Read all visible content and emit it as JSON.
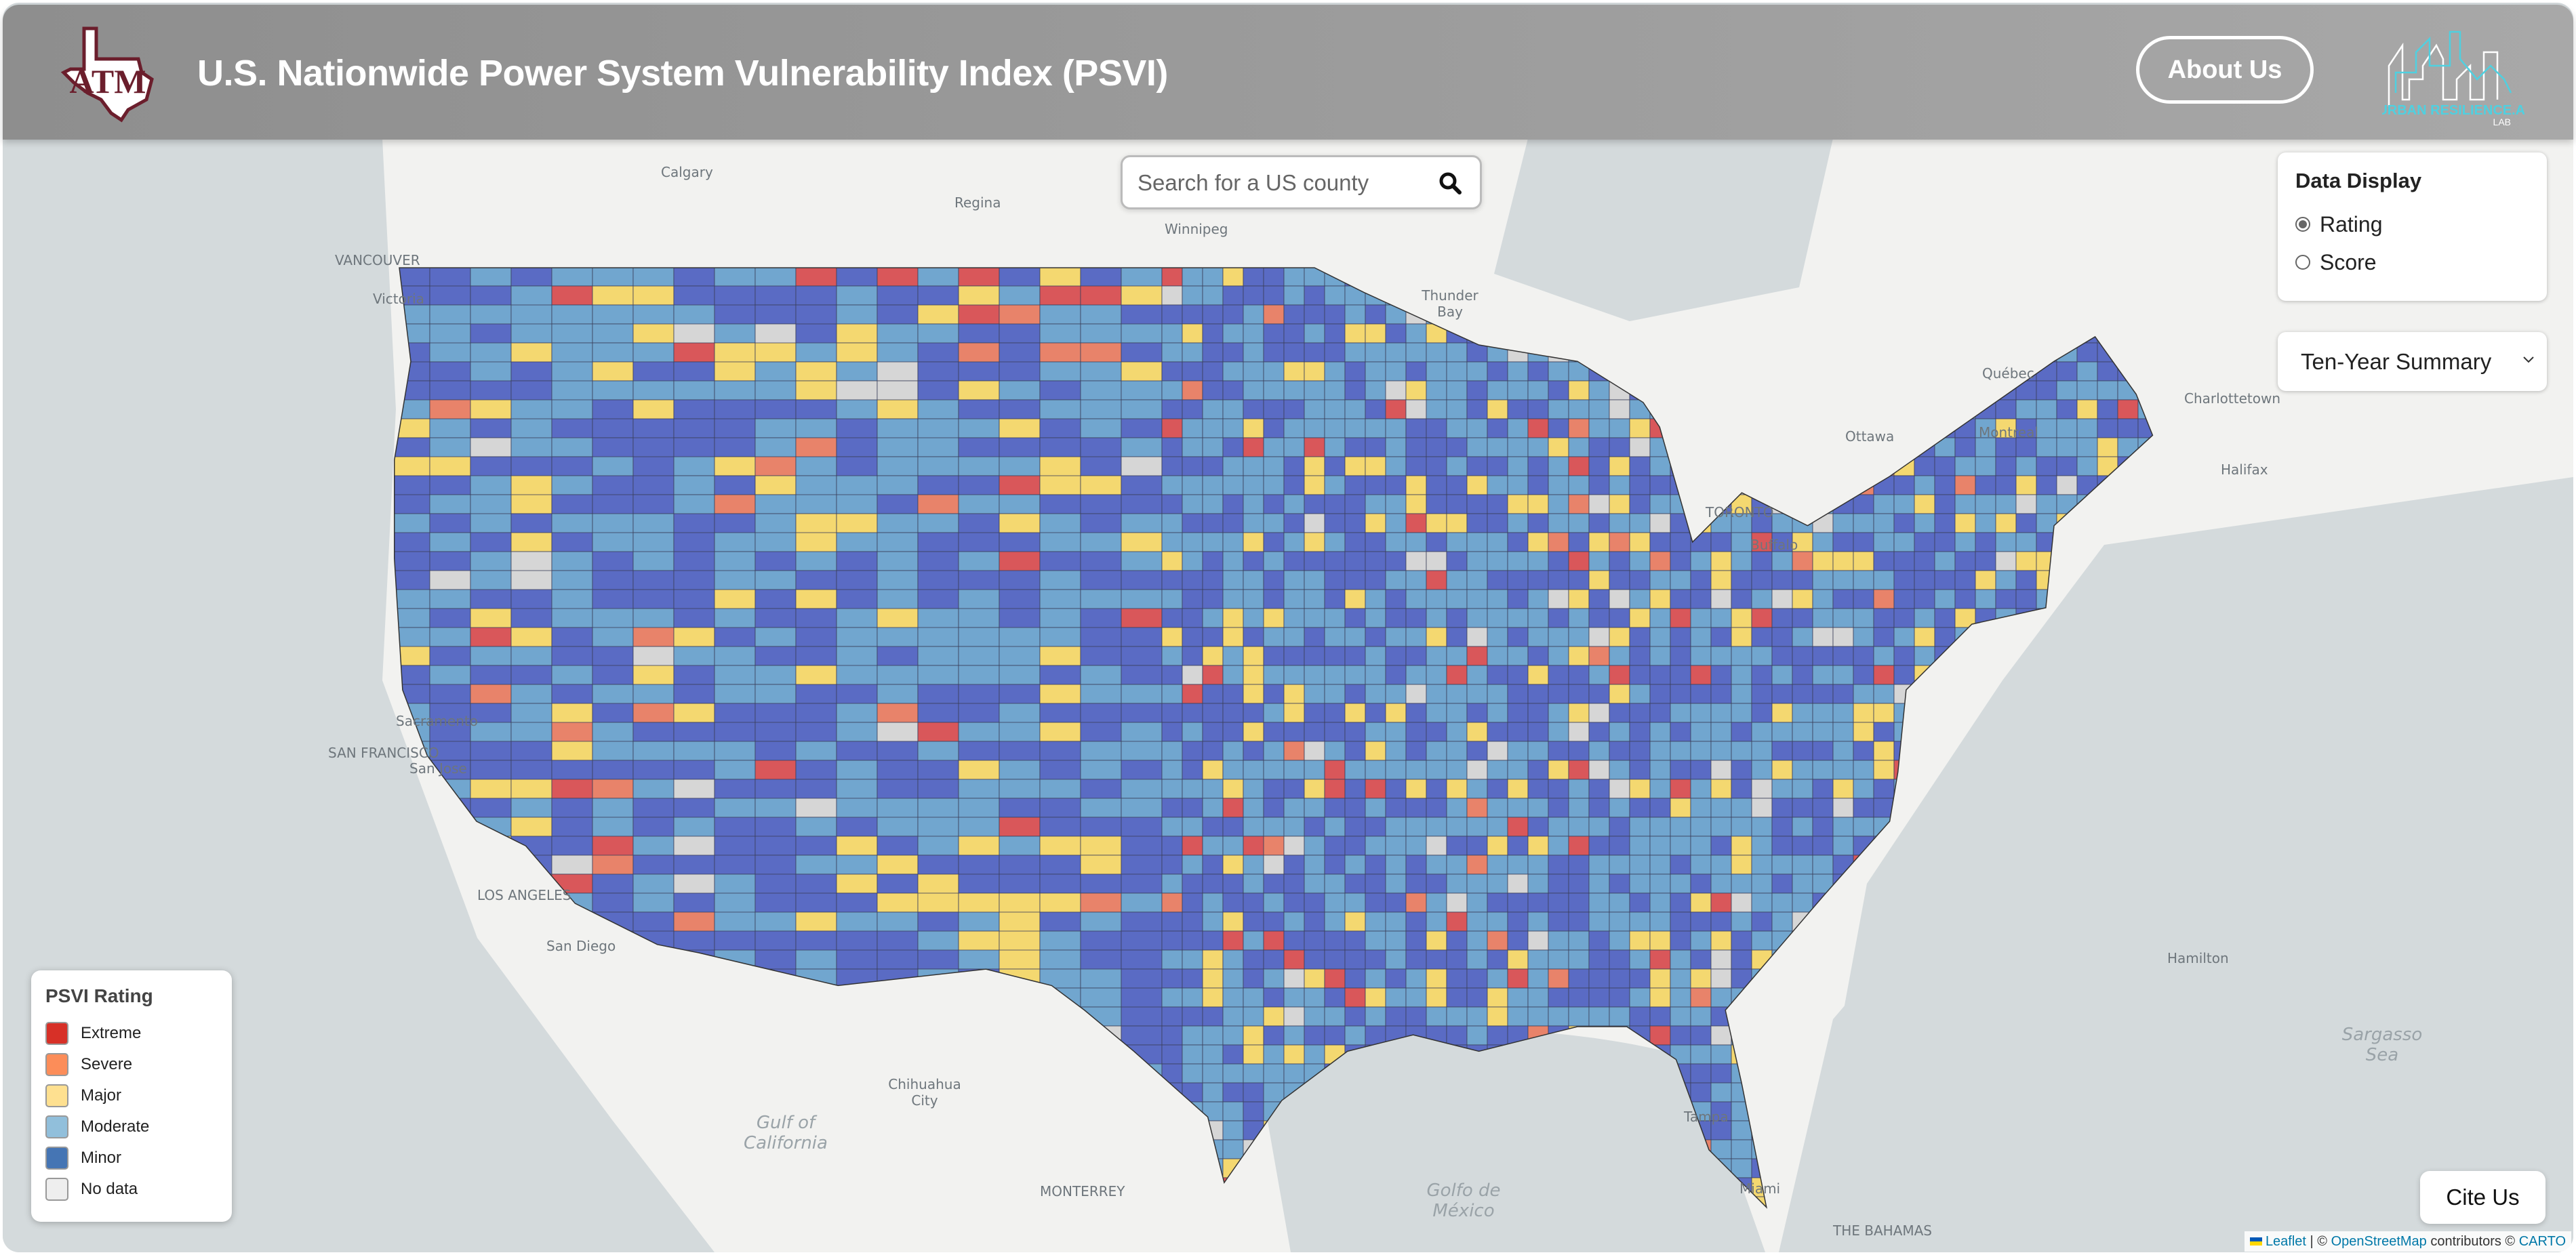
{
  "header": {
    "title": "U.S. Nationwide Power System Vulnerability Index (PSVI)",
    "logo_left": "ATM",
    "about_label": "About Us",
    "logo_right": "URBAN RESILIENCE.AI LAB"
  },
  "search": {
    "placeholder": "Search for a US county",
    "value": "",
    "icon": "search-icon"
  },
  "data_display": {
    "title": "Data Display",
    "options": [
      {
        "label": "Rating",
        "selected": true
      },
      {
        "label": "Score",
        "selected": false
      }
    ]
  },
  "period_select": {
    "selected": "Ten-Year Summary"
  },
  "legend": {
    "title": "PSVI Rating",
    "items": [
      {
        "label": "Extreme",
        "color": "#d73027"
      },
      {
        "label": "Severe",
        "color": "#fc8d59"
      },
      {
        "label": "Major",
        "color": "#fee090"
      },
      {
        "label": "Moderate",
        "color": "#91bfdb"
      },
      {
        "label": "Minor",
        "color": "#4575b4"
      },
      {
        "label": "No data",
        "color": "#eeeeee"
      }
    ]
  },
  "map_fill_colors": {
    "Extreme": "#d9575a",
    "Severe": "#e8836a",
    "Major": "#f4d870",
    "Moderate": "#71a6cf",
    "Minor": "#5a6bc4",
    "No data": "#d6d6d6"
  },
  "basemap_labels": [
    "Calgary",
    "Regina",
    "Winnipeg",
    "VANCOUVER",
    "Victoria",
    "Thunder Bay",
    "Québec",
    "Charlottetown",
    "Ottawa",
    "Montreal",
    "Halifax",
    "TORONTO",
    "Buffalo",
    "Sacramento",
    "SAN FRANCISCO",
    "San Jose",
    "LOS ANGELES",
    "San Diego",
    "Hamilton",
    "Sargasso Sea",
    "Chihuahua City",
    "Gulf of California",
    "MONTERREY",
    "Golfo de México",
    "Tampa",
    "Miami",
    "THE BAHAMAS"
  ],
  "cite_label": "Cite Us",
  "attribution": {
    "leaflet": "Leaflet",
    "sep": " | © ",
    "osm": "OpenStreetMap",
    "contrib": " contributors © ",
    "carto": "CARTO"
  }
}
